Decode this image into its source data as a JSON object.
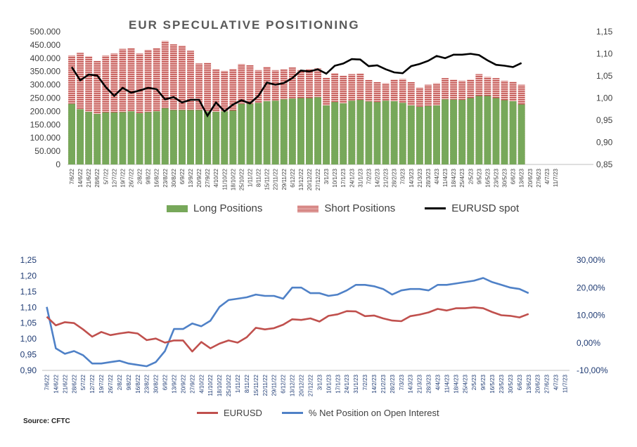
{
  "title": "EUR SPECULATIVE POSITIONING",
  "source": "Source: CFTC",
  "colors": {
    "long": "#77a85a",
    "short": "#c0504d",
    "spot": "#000000",
    "eurusd": "#c0504d",
    "netpct": "#4f81c7",
    "axis_right2": "#1f3b73"
  },
  "legend_top": [
    "Long Positions",
    "Short Positions",
    "EURUSD spot"
  ],
  "legend_bottom": [
    "EURUSD",
    "% Net Position on Open Interest"
  ],
  "top_left_ticks": [
    "0",
    "50.000",
    "100.000",
    "150.000",
    "200.000",
    "250.000",
    "300.000",
    "350.000",
    "400.000",
    "450.000",
    "500.000"
  ],
  "top_right_ticks": [
    "0,85",
    "0,90",
    "0,95",
    "1,00",
    "1,05",
    "1,10",
    "1,15"
  ],
  "bottom_left_ticks": [
    "0,90",
    "0,95",
    "1,00",
    "1,05",
    "1,10",
    "1,15",
    "1,20",
    "1,25"
  ],
  "bottom_right_ticks": [
    "-10,00%",
    "0,00%",
    "10,00%",
    "20,00%",
    "30,00%"
  ],
  "chart_data": [
    {
      "type": "bar",
      "title": "EUR SPECULATIVE POSITIONING",
      "x": [
        "7/6/22",
        "14/6/22",
        "21/6/22",
        "28/6/22",
        "5/7/22",
        "12/7/22",
        "19/7/22",
        "26/7/22",
        "2/8/22",
        "9/8/22",
        "16/8/22",
        "23/8/22",
        "30/8/22",
        "6/9/22",
        "13/9/22",
        "20/9/22",
        "27/9/22",
        "4/10/22",
        "11/10/22",
        "18/10/22",
        "25/10/22",
        "1/11/22",
        "8/11/22",
        "15/11/22",
        "22/11/22",
        "29/11/22",
        "6/12/22",
        "13/12/22",
        "20/12/22",
        "27/12/22",
        "3/1/23",
        "10/1/23",
        "17/1/23",
        "24/1/23",
        "31/1/23",
        "7/2/23",
        "14/2/23",
        "21/2/23",
        "28/2/23",
        "7/3/23",
        "14/3/23",
        "21/3/23",
        "28/3/23",
        "4/4/23",
        "11/4/23",
        "18/4/23",
        "25/4/23",
        "2/5/23",
        "9/5/23",
        "16/5/23",
        "23/5/23",
        "30/5/23",
        "6/6/23",
        "13/6/23",
        "20/6/23",
        "27/6/23",
        "4/7/23",
        "11/7/23"
      ],
      "ylim_left": [
        0,
        500000
      ],
      "ylim_right": [
        0.85,
        1.15
      ],
      "series": [
        {
          "name": "Long Positions",
          "axis": "left",
          "values": [
            228000,
            208000,
            198000,
            190000,
            196000,
            196000,
            197000,
            200000,
            193000,
            197000,
            200000,
            212000,
            205000,
            205000,
            205000,
            205000,
            200000,
            198000,
            200000,
            203000,
            228000,
            228000,
            232000,
            238000,
            240000,
            245000,
            248000,
            250000,
            250000,
            253000,
            222000,
            235000,
            230000,
            240000,
            243000,
            237000,
            235000,
            240000,
            238000,
            232000,
            222000,
            217000,
            220000,
            222000,
            245000,
            244000,
            243000,
            250000,
            258000,
            258000,
            250000,
            242000,
            238000,
            226000,
            null,
            null,
            null,
            null
          ]
        },
        {
          "name": "Short Positions",
          "axis": "left",
          "values": [
            410000,
            420000,
            408000,
            390000,
            410000,
            418000,
            435000,
            438000,
            418000,
            432000,
            438000,
            465000,
            452000,
            448000,
            428000,
            380000,
            383000,
            358000,
            353000,
            360000,
            378000,
            374000,
            355000,
            368000,
            355000,
            358000,
            365000,
            355000,
            358000,
            362000,
            326000,
            344000,
            334000,
            340000,
            342000,
            318000,
            310000,
            306000,
            320000,
            322000,
            310000,
            290000,
            300000,
            306000,
            325000,
            320000,
            315000,
            320000,
            340000,
            330000,
            325000,
            315000,
            312000,
            300000,
            null,
            null,
            null,
            null
          ]
        },
        {
          "name": "EURUSD spot",
          "axis": "right",
          "values": [
            1.07,
            1.04,
            1.053,
            1.051,
            1.025,
            1.005,
            1.023,
            1.012,
            1.017,
            1.023,
            1.02,
            0.997,
            1.002,
            0.99,
            0.996,
            0.996,
            0.96,
            0.99,
            0.97,
            0.985,
            0.995,
            0.988,
            1.005,
            1.035,
            1.03,
            1.034,
            1.045,
            1.062,
            1.06,
            1.065,
            1.055,
            1.073,
            1.078,
            1.088,
            1.087,
            1.072,
            1.074,
            1.065,
            1.058,
            1.056,
            1.072,
            1.077,
            1.084,
            1.095,
            1.09,
            1.098,
            1.098,
            1.1,
            1.097,
            1.085,
            1.075,
            1.073,
            1.07,
            1.079,
            null,
            null,
            null,
            null
          ]
        }
      ]
    },
    {
      "type": "line",
      "x": [
        "7/6/22",
        "14/6/22",
        "21/6/22",
        "28/6/22",
        "5/7/22",
        "12/7/22",
        "19/7/22",
        "26/7/22",
        "2/8/22",
        "9/8/22",
        "16/8/22",
        "23/8/22",
        "30/8/22",
        "6/9/22",
        "13/9/22",
        "20/9/22",
        "27/9/22",
        "4/10/22",
        "11/10/22",
        "18/10/22",
        "25/10/22",
        "1/11/22",
        "8/11/22",
        "15/11/22",
        "22/11/22",
        "29/11/22",
        "6/12/22",
        "13/12/22",
        "20/12/22",
        "27/12/22",
        "3/1/23",
        "10/1/23",
        "17/1/23",
        "24/1/23",
        "31/1/23",
        "7/2/23",
        "14/2/23",
        "21/2/23",
        "28/2/23",
        "7/3/23",
        "14/3/23",
        "21/3/23",
        "28/3/23",
        "4/4/23",
        "11/4/23",
        "18/4/23",
        "25/4/23",
        "2/5/23",
        "9/5/23",
        "16/5/23",
        "23/5/23",
        "30/5/23",
        "6/6/23",
        "13/6/23",
        "20/6/23",
        "27/6/23",
        "4/7/23",
        "11/7/23"
      ],
      "ylim_left": [
        0.9,
        1.25
      ],
      "ylim_right": [
        -0.1,
        0.3
      ],
      "series": [
        {
          "name": "EURUSD",
          "axis": "left",
          "values": [
            1.07,
            1.043,
            1.053,
            1.05,
            1.03,
            1.007,
            1.022,
            1.012,
            1.017,
            1.021,
            1.017,
            0.996,
            1.001,
            0.988,
            0.995,
            0.995,
            0.96,
            0.99,
            0.97,
            0.985,
            0.995,
            0.988,
            1.005,
            1.035,
            1.03,
            1.034,
            1.045,
            1.062,
            1.06,
            1.065,
            1.055,
            1.073,
            1.078,
            1.088,
            1.087,
            1.072,
            1.074,
            1.065,
            1.058,
            1.056,
            1.072,
            1.077,
            1.084,
            1.095,
            1.09,
            1.097,
            1.097,
            1.1,
            1.097,
            1.085,
            1.075,
            1.073,
            1.068,
            1.079,
            null,
            null,
            null,
            null
          ]
        },
        {
          "name": "% Net Position on Open Interest",
          "axis": "right",
          "values": [
            0.13,
            -0.02,
            -0.04,
            -0.03,
            -0.045,
            -0.075,
            -0.075,
            -0.07,
            -0.065,
            -0.075,
            -0.08,
            -0.085,
            -0.07,
            -0.03,
            0.05,
            0.05,
            0.07,
            0.06,
            0.08,
            0.13,
            0.155,
            0.16,
            0.165,
            0.175,
            0.17,
            0.17,
            0.16,
            0.2,
            0.2,
            0.18,
            0.18,
            0.17,
            0.175,
            0.19,
            0.21,
            0.21,
            0.205,
            0.195,
            0.175,
            0.19,
            0.195,
            0.195,
            0.19,
            0.21,
            0.21,
            0.215,
            0.22,
            0.225,
            0.235,
            0.22,
            0.21,
            0.2,
            0.195,
            0.18,
            null,
            null,
            null,
            null
          ]
        }
      ]
    }
  ]
}
